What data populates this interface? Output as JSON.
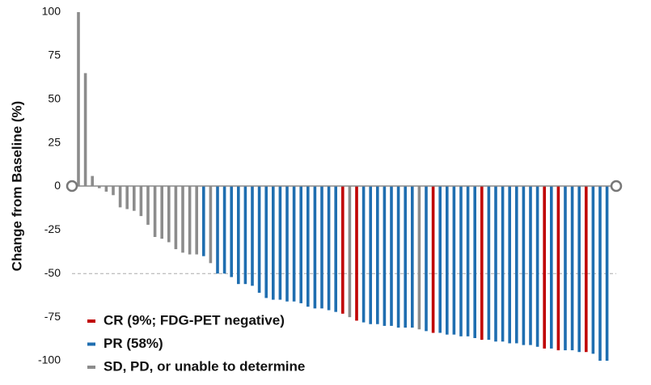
{
  "chart_data": {
    "type": "bar",
    "ylabel": "Change from Baseline (%)",
    "ylim": [
      -100,
      100
    ],
    "yticks": [
      -100,
      -75,
      -50,
      -25,
      0,
      25,
      50,
      75,
      100
    ],
    "yticks_labels_note_free": null,
    "hlines": [
      -50
    ],
    "legend": "lower left",
    "series": [
      {
        "name": "CR (9%; FDG-PET negative)",
        "color": "#c00000",
        "values": [
          null,
          null,
          null,
          null,
          null,
          null,
          null,
          null,
          null,
          null,
          null,
          null,
          null,
          null,
          null,
          null,
          null,
          null,
          null,
          null,
          null,
          null,
          null,
          null,
          null,
          null,
          null,
          null,
          null,
          null,
          null,
          null,
          null,
          null,
          null,
          null,
          null,
          null,
          -73,
          null,
          -77,
          null,
          null,
          null,
          null,
          null,
          null,
          null,
          null,
          null,
          null,
          -84,
          null,
          null,
          null,
          null,
          null,
          null,
          -88,
          null,
          null,
          null,
          null,
          null,
          null,
          null,
          null,
          -93,
          null,
          -94,
          null,
          null,
          null,
          -95,
          null,
          null,
          null
        ]
      },
      {
        "name": "PR (58%)",
        "color": "#1f6eb0",
        "values": [
          null,
          null,
          null,
          null,
          null,
          null,
          null,
          null,
          null,
          null,
          null,
          null,
          null,
          null,
          null,
          null,
          null,
          null,
          -40,
          null,
          -50,
          -50,
          -52,
          -56,
          -56,
          -57,
          -61,
          -64,
          -65,
          -65,
          -66,
          -66,
          -67,
          -69,
          -70,
          -70,
          -71,
          -72,
          null,
          null,
          null,
          -78,
          -79,
          -79,
          -80,
          -80,
          -81,
          -81,
          -81,
          null,
          -83,
          null,
          -84,
          -85,
          -85,
          -86,
          -86,
          -87,
          null,
          -88,
          -89,
          -89,
          -90,
          -90,
          -91,
          -91,
          -92,
          null,
          -93,
          null,
          -94,
          -94,
          -95,
          null,
          -96,
          -100,
          -100
        ]
      },
      {
        "name": "SD, PD, or unable to determine",
        "color": "#8c8c8c",
        "values": [
          100,
          65,
          6,
          -1,
          -3,
          -5,
          -12,
          -13,
          -14,
          -17,
          -22,
          -29,
          -30,
          -32,
          -36,
          -38,
          -39,
          -39,
          null,
          -44,
          null,
          null,
          null,
          null,
          null,
          null,
          null,
          null,
          null,
          null,
          null,
          null,
          null,
          null,
          null,
          null,
          null,
          null,
          null,
          -75,
          null,
          null,
          null,
          null,
          null,
          null,
          null,
          null,
          null,
          -82,
          null,
          null,
          null,
          null,
          null,
          null,
          null,
          null,
          null,
          null,
          null,
          null,
          null,
          null,
          null,
          null,
          null,
          null,
          null,
          null,
          null,
          null,
          null,
          null,
          null,
          null,
          null
        ]
      }
    ]
  }
}
